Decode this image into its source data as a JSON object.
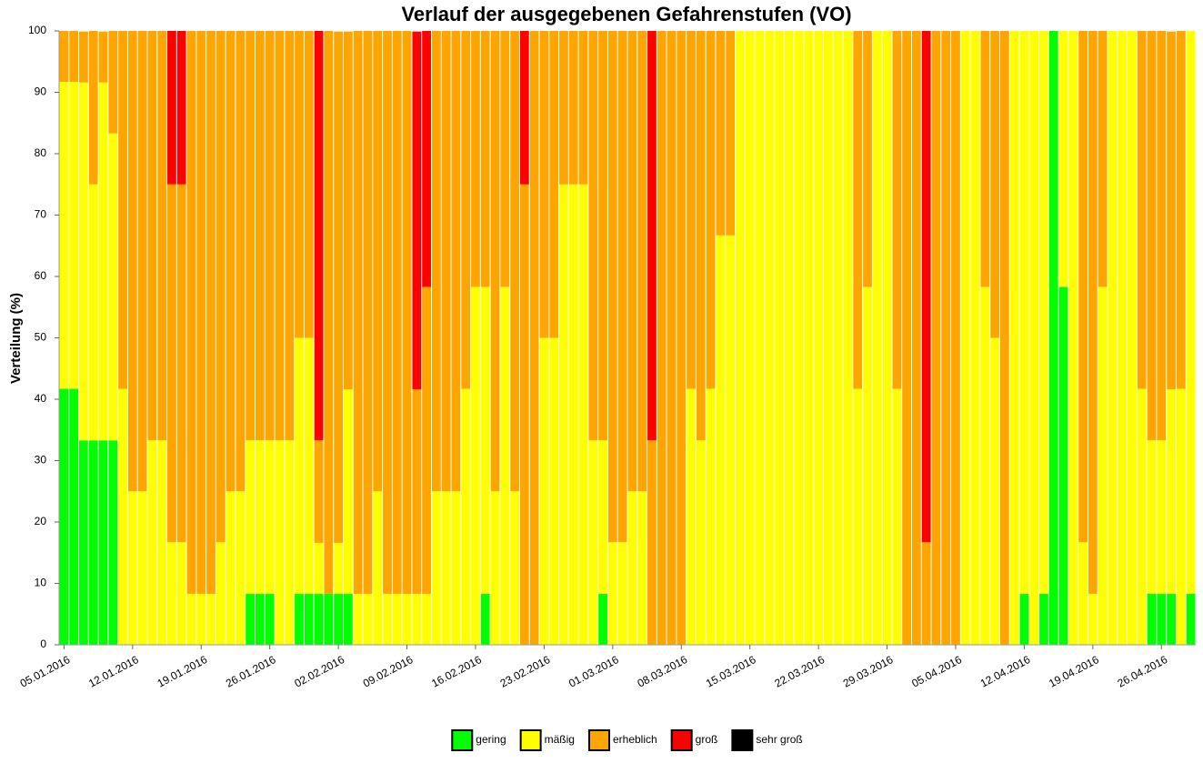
{
  "chart_data": {
    "type": "stacked_bar",
    "title": "Verlauf der ausgegebenen Gefahrenstufen (VO)",
    "y_label": "Verteilung (%)",
    "ylim": [
      0,
      100
    ],
    "yticks": [
      0,
      10,
      20,
      30,
      40,
      50,
      60,
      70,
      80,
      90,
      100
    ],
    "grid": false,
    "legend": "bottom",
    "categories": [
      "05.01.2016",
      null,
      null,
      null,
      null,
      null,
      null,
      "12.01.2016",
      null,
      null,
      null,
      null,
      null,
      null,
      "19.01.2016",
      null,
      null,
      null,
      null,
      null,
      null,
      "26.01.2016",
      null,
      null,
      null,
      null,
      null,
      null,
      "02.02.2016",
      null,
      null,
      null,
      null,
      null,
      null,
      "09.02.2016",
      null,
      null,
      null,
      null,
      null,
      null,
      "16.02.2016",
      null,
      null,
      null,
      null,
      null,
      null,
      "23.02.2016",
      null,
      null,
      null,
      null,
      null,
      null,
      "01.03.2016",
      null,
      null,
      null,
      null,
      null,
      null,
      "08.03.2016",
      null,
      null,
      null,
      null,
      null,
      null,
      "15.03.2016",
      null,
      null,
      null,
      null,
      null,
      null,
      "22.03.2016",
      null,
      null,
      null,
      null,
      null,
      null,
      "29.03.2016",
      null,
      null,
      null,
      null,
      null,
      null,
      "05.04.2016",
      null,
      null,
      null,
      null,
      null,
      null,
      "12.04.2016",
      null,
      null,
      null,
      null,
      null,
      null,
      "19.04.2016",
      null,
      null,
      null,
      null,
      null,
      null,
      "26.04.2016",
      null,
      null,
      null
    ],
    "series": [
      {
        "name": "gering",
        "color": "#00ff00",
        "values": [
          41.7,
          41.7,
          33.3,
          33.3,
          33.3,
          33.3,
          0,
          0,
          0,
          0,
          0,
          0,
          0,
          0,
          0,
          0,
          0,
          0,
          0,
          8.3,
          8.3,
          8.3,
          0,
          0,
          8.3,
          8.3,
          8.3,
          8.3,
          8.3,
          8.3,
          0,
          0,
          0,
          0,
          0,
          0,
          0,
          0,
          0,
          0,
          0,
          0,
          0,
          8.3,
          0,
          0,
          0,
          0,
          0,
          0,
          0,
          0,
          0,
          0,
          0,
          8.3,
          0,
          0,
          0,
          0,
          0,
          0,
          0,
          0,
          0,
          0,
          0,
          0,
          0,
          0,
          0,
          0,
          0,
          0,
          0,
          0,
          0,
          0,
          0,
          0,
          0,
          0,
          0,
          0,
          0,
          0,
          0,
          0,
          0,
          0,
          0,
          0,
          0,
          0,
          0,
          0,
          0,
          0,
          8.3,
          0,
          8.3,
          100,
          58.3,
          0,
          0,
          0,
          0,
          0,
          0,
          0,
          0,
          8.3,
          8.3,
          8.3,
          0,
          8.3
        ]
      },
      {
        "name": "mäßig",
        "color": "#ffff00",
        "values": [
          50,
          50,
          58.3,
          41.7,
          58.3,
          50,
          41.7,
          25,
          25,
          33.3,
          33.3,
          16.7,
          16.7,
          8.3,
          8.3,
          8.3,
          16.7,
          25,
          25,
          25,
          25,
          25,
          33.3,
          33.3,
          41.7,
          41.7,
          8.3,
          0,
          8.3,
          33.3,
          8.3,
          8.3,
          25,
          8.3,
          8.3,
          8.3,
          8.3,
          8.3,
          25,
          25,
          25,
          41.7,
          58.3,
          50,
          25,
          58.3,
          25,
          0,
          0,
          50,
          50,
          75,
          75,
          75,
          33.3,
          25,
          16.7,
          16.7,
          25,
          25,
          0,
          0,
          0,
          0,
          41.7,
          33.3,
          41.7,
          66.7,
          66.7,
          100,
          100,
          100,
          100,
          100,
          100,
          100,
          100,
          100,
          100,
          100,
          100,
          41.7,
          58.3,
          100,
          100,
          41.7,
          0,
          0,
          0,
          0,
          0,
          0,
          100,
          100,
          58.3,
          50,
          0,
          100,
          91.7,
          100,
          91.7,
          0,
          41.7,
          100,
          16.7,
          8.3,
          58.3,
          100,
          100,
          100,
          41.7,
          25,
          25,
          33.3,
          41.7,
          91.7
        ]
      },
      {
        "name": "erheblich",
        "color": "#ffa500",
        "values": [
          8.3,
          8.3,
          8.3,
          25,
          8.3,
          16.7,
          58.3,
          75,
          75,
          66.7,
          66.7,
          58.3,
          58.3,
          91.7,
          91.7,
          91.7,
          83.3,
          75,
          75,
          66.7,
          66.7,
          66.7,
          66.7,
          66.7,
          50,
          50,
          16.7,
          91.7,
          83.3,
          58.3,
          91.7,
          91.7,
          75,
          91.7,
          91.7,
          91.7,
          33.3,
          50,
          75,
          75,
          75,
          58.3,
          41.7,
          41.7,
          75,
          41.7,
          75,
          75,
          100,
          50,
          50,
          25,
          25,
          25,
          66.7,
          66.7,
          83.3,
          83.3,
          75,
          75,
          33.3,
          100,
          100,
          100,
          58.3,
          66.7,
          58.3,
          33.3,
          33.3,
          0,
          0,
          0,
          0,
          0,
          0,
          0,
          0,
          0,
          0,
          0,
          0,
          58.3,
          41.7,
          0,
          0,
          58.3,
          100,
          100,
          16.7,
          100,
          100,
          100,
          0,
          0,
          41.7,
          50,
          100,
          0,
          0,
          0,
          0,
          0,
          0,
          0,
          83.3,
          91.7,
          41.7,
          0,
          0,
          0,
          58.3,
          66.7,
          66.7,
          58.3,
          58.3,
          0
        ]
      },
      {
        "name": "groß",
        "color": "#ff0000",
        "values": [
          0,
          0,
          0,
          0,
          0,
          0,
          0,
          0,
          0,
          0,
          0,
          25,
          25,
          0,
          0,
          0,
          0,
          0,
          0,
          0,
          0,
          0,
          0,
          0,
          0,
          0,
          66.7,
          0,
          0,
          0,
          0,
          0,
          0,
          0,
          0,
          0,
          58.3,
          41.7,
          0,
          0,
          0,
          0,
          0,
          0,
          0,
          0,
          0,
          25,
          0,
          0,
          0,
          0,
          0,
          0,
          0,
          0,
          0,
          0,
          0,
          0,
          66.7,
          0,
          0,
          0,
          0,
          0,
          0,
          0,
          0,
          0,
          0,
          0,
          0,
          0,
          0,
          0,
          0,
          0,
          0,
          0,
          0,
          0,
          0,
          0,
          0,
          0,
          0,
          0,
          83.3,
          0,
          0,
          0,
          0,
          0,
          0,
          0,
          0,
          0,
          0,
          0,
          0,
          0,
          0,
          0,
          0,
          0,
          0,
          0,
          0,
          0,
          0,
          0,
          0,
          0,
          0,
          0
        ]
      },
      {
        "name": "sehr groß",
        "color": "#000000",
        "values": [
          0,
          0,
          0,
          0,
          0,
          0,
          0,
          0,
          0,
          0,
          0,
          0,
          0,
          0,
          0,
          0,
          0,
          0,
          0,
          0,
          0,
          0,
          0,
          0,
          0,
          0,
          0,
          0,
          0,
          0,
          0,
          0,
          0,
          0,
          0,
          0,
          0,
          0,
          0,
          0,
          0,
          0,
          0,
          0,
          0,
          0,
          0,
          0,
          0,
          0,
          0,
          0,
          0,
          0,
          0,
          0,
          0,
          0,
          0,
          0,
          0,
          0,
          0,
          0,
          0,
          0,
          0,
          0,
          0,
          0,
          0,
          0,
          0,
          0,
          0,
          0,
          0,
          0,
          0,
          0,
          0,
          0,
          0,
          0,
          0,
          0,
          0,
          0,
          0,
          0,
          0,
          0,
          0,
          0,
          0,
          0,
          0,
          0,
          0,
          0,
          0,
          0,
          0,
          0,
          0,
          0,
          0,
          0,
          0,
          0,
          0,
          0,
          0,
          0,
          0,
          0
        ]
      }
    ]
  }
}
